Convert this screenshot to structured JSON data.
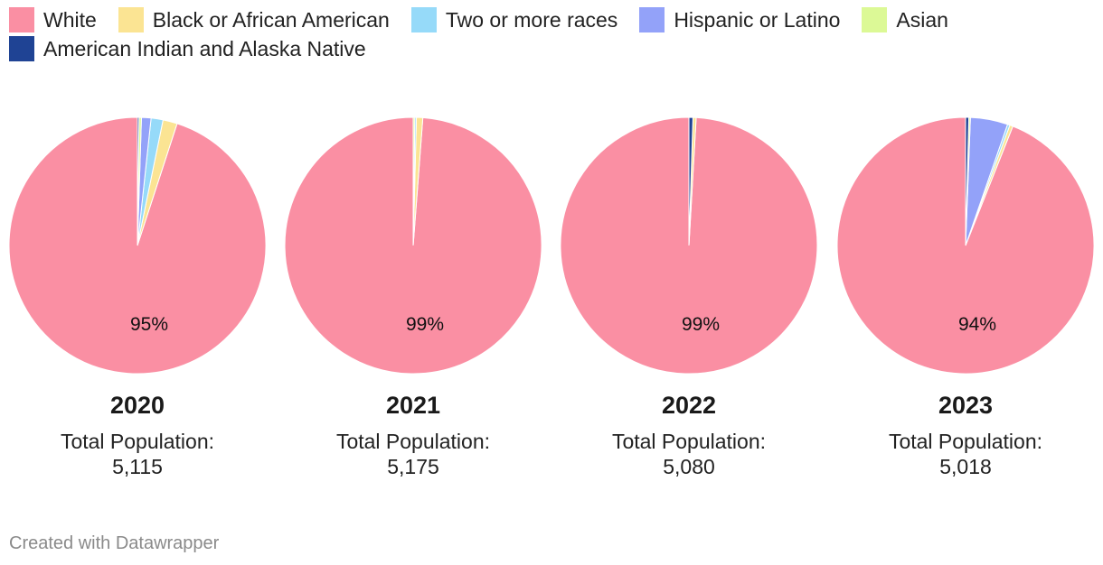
{
  "chart_data": {
    "type": "pie",
    "legend": [
      {
        "name": "White",
        "color": "#fa8fa3"
      },
      {
        "name": "Black or African American",
        "color": "#fbe493"
      },
      {
        "name": "Two or more races",
        "color": "#96daf9"
      },
      {
        "name": "Hispanic or Latino",
        "color": "#93a2f9"
      },
      {
        "name": "Asian",
        "color": "#dcf996"
      },
      {
        "name": "American Indian and Alaska Native",
        "color": "#1f4394"
      }
    ],
    "pies": [
      {
        "year": "2020",
        "total_label": "Total Population:",
        "total": "5,115",
        "label": "95%",
        "values": [
          95.0,
          1.8,
          1.5,
          1.2,
          0.3,
          0.2
        ]
      },
      {
        "year": "2021",
        "total_label": "Total Population:",
        "total": "5,175",
        "label": "99%",
        "values": [
          98.8,
          0.8,
          0.2,
          0.0,
          0.2,
          0.0
        ]
      },
      {
        "year": "2022",
        "total_label": "Total Population:",
        "total": "5,080",
        "label": "99%",
        "values": [
          99.1,
          0.4,
          0.0,
          0.0,
          0.0,
          0.5
        ]
      },
      {
        "year": "2023",
        "total_label": "Total Population:",
        "total": "5,018",
        "label": "94%",
        "values": [
          94.0,
          0.4,
          0.3,
          4.7,
          0.2,
          0.4
        ]
      }
    ]
  },
  "footer": {
    "credit": "Created with Datawrapper"
  }
}
